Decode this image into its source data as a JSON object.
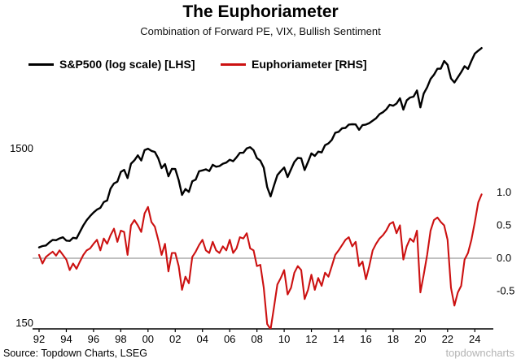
{
  "title": "The Euphoriameter",
  "subtitle": "Combination of Forward PE, VIX, Bullish Sentiment",
  "legend": [
    {
      "label": "S&P500 (log scale) [LHS]",
      "color": "#000000"
    },
    {
      "label": "Euphoriameter [RHS]",
      "color": "#cc1111"
    }
  ],
  "source": "Source: Topdown Charts, LSEG",
  "watermark": "topdowncharts",
  "colors": {
    "sp500_line": "#000000",
    "euphoriameter_line": "#cc1111",
    "zero_line": "#9b9b9b",
    "axis": "#000000",
    "watermark": "#b3b3b3"
  },
  "chart_data": {
    "type": "line",
    "title": "The Euphoriameter",
    "subtitle": "Combination of Forward PE, VIX, Bullish Sentiment",
    "xlabel": "",
    "left_ylabel": "S&P500 (log scale)",
    "right_ylabel": "Euphoriameter",
    "legend_position": "top-left",
    "grid": false,
    "x": [
      1992,
      1992.25,
      1992.5,
      1992.75,
      1993,
      1993.25,
      1993.5,
      1993.75,
      1994,
      1994.25,
      1994.5,
      1994.75,
      1995,
      1995.25,
      1995.5,
      1995.75,
      1996,
      1996.25,
      1996.5,
      1996.75,
      1997,
      1997.25,
      1997.5,
      1997.75,
      1998,
      1998.25,
      1998.5,
      1998.75,
      1999,
      1999.25,
      1999.5,
      1999.75,
      2000,
      2000.25,
      2000.5,
      2000.75,
      2001,
      2001.25,
      2001.5,
      2001.75,
      2002,
      2002.25,
      2002.5,
      2002.75,
      2003,
      2003.25,
      2003.5,
      2003.75,
      2004,
      2004.25,
      2004.5,
      2004.75,
      2005,
      2005.25,
      2005.5,
      2005.75,
      2006,
      2006.25,
      2006.5,
      2006.75,
      2007,
      2007.25,
      2007.5,
      2007.75,
      2008,
      2008.25,
      2008.5,
      2008.75,
      2009,
      2009.25,
      2009.5,
      2009.75,
      2010,
      2010.25,
      2010.5,
      2010.75,
      2011,
      2011.25,
      2011.5,
      2011.75,
      2012,
      2012.25,
      2012.5,
      2012.75,
      2013,
      2013.25,
      2013.5,
      2013.75,
      2014,
      2014.25,
      2014.5,
      2014.75,
      2015,
      2015.25,
      2015.5,
      2015.75,
      2016,
      2016.25,
      2016.5,
      2016.75,
      2017,
      2017.25,
      2017.5,
      2017.75,
      2018,
      2018.25,
      2018.5,
      2018.75,
      2019,
      2019.25,
      2019.5,
      2019.75,
      2020,
      2020.25,
      2020.5,
      2020.75,
      2021,
      2021.25,
      2021.5,
      2021.75,
      2022,
      2022.25,
      2022.5,
      2022.75,
      2023,
      2023.25,
      2023.5,
      2023.75,
      2024,
      2024.25,
      2024.5
    ],
    "series": [
      {
        "name": "S&P500 (log scale) [LHS]",
        "axis": "left",
        "color": "#000000",
        "values": [
          408,
          415,
          418,
          435,
          450,
          448,
          459,
          466,
          446,
          444,
          463,
          459,
          501,
          545,
          584,
          616,
          646,
          671,
          687,
          741,
          757,
          885,
          947,
          970,
          1102,
          1134,
          1017,
          1229,
          1286,
          1373,
          1283,
          1469,
          1499,
          1455,
          1436,
          1320,
          1160,
          1224,
          1041,
          1148,
          1147,
          990,
          815,
          880,
          848,
          975,
          996,
          1112,
          1126,
          1141,
          1115,
          1212,
          1181,
          1191,
          1229,
          1248,
          1295,
          1270,
          1336,
          1418,
          1421,
          1503,
          1527,
          1468,
          1323,
          1280,
          1166,
          903,
          798,
          919,
          1057,
          1115,
          1169,
          1031,
          1141,
          1258,
          1326,
          1321,
          1131,
          1258,
          1408,
          1362,
          1441,
          1426,
          1569,
          1606,
          1682,
          1848,
          1872,
          1960,
          1972,
          2059,
          2068,
          2063,
          1920,
          2044,
          2060,
          2099,
          2168,
          2239,
          2363,
          2423,
          2519,
          2674,
          2641,
          2718,
          2914,
          2507,
          2834,
          2942,
          2977,
          3231,
          2585,
          3100,
          3363,
          3756,
          3973,
          4298,
          4308,
          4766,
          4530,
          3785,
          3586,
          3840,
          4109,
          4450,
          4288,
          4770,
          5254,
          5460,
          5650
        ]
      },
      {
        "name": "Euphoriameter [RHS]",
        "axis": "right",
        "color": "#cc1111",
        "values": [
          0.05,
          -0.08,
          0.02,
          0.06,
          0.1,
          0.04,
          0.12,
          0.05,
          -0.02,
          -0.18,
          -0.08,
          -0.16,
          -0.05,
          0.05,
          0.12,
          0.15,
          0.22,
          0.28,
          0.12,
          0.3,
          0.22,
          0.35,
          0.45,
          0.25,
          0.42,
          0.4,
          0.05,
          0.5,
          0.58,
          0.5,
          0.4,
          0.68,
          0.78,
          0.55,
          0.48,
          0.28,
          0.05,
          0.22,
          -0.2,
          0.08,
          0.08,
          -0.12,
          -0.48,
          -0.28,
          -0.38,
          0.02,
          0.1,
          0.2,
          0.28,
          0.12,
          0.08,
          0.25,
          0.12,
          0.08,
          0.18,
          0.12,
          0.28,
          0.08,
          0.15,
          0.32,
          0.3,
          0.38,
          0.15,
          0.12,
          -0.12,
          -0.1,
          -0.45,
          -1.0,
          -1.08,
          -0.75,
          -0.4,
          -0.3,
          -0.18,
          -0.55,
          -0.45,
          -0.22,
          -0.12,
          -0.18,
          -0.62,
          -0.48,
          -0.25,
          -0.48,
          -0.3,
          -0.42,
          -0.22,
          -0.28,
          -0.12,
          0.05,
          0.12,
          0.2,
          0.28,
          0.32,
          0.18,
          0.25,
          -0.12,
          -0.05,
          -0.32,
          -0.12,
          0.12,
          0.22,
          0.3,
          0.35,
          0.42,
          0.52,
          0.55,
          0.38,
          0.5,
          -0.02,
          0.18,
          0.3,
          0.25,
          0.42,
          -0.52,
          -0.25,
          0.05,
          0.42,
          0.58,
          0.62,
          0.55,
          0.5,
          0.28,
          -0.45,
          -0.72,
          -0.52,
          -0.42,
          -0.02,
          0.08,
          0.28,
          0.55,
          0.85,
          0.97
        ]
      }
    ],
    "x_ticks": {
      "values": [
        1992,
        1994,
        1996,
        1998,
        2000,
        2002,
        2004,
        2006,
        2008,
        2010,
        2012,
        2014,
        2016,
        2018,
        2020,
        2022,
        2024
      ],
      "labels": [
        "92",
        "94",
        "96",
        "98",
        "00",
        "02",
        "04",
        "06",
        "08",
        "10",
        "12",
        "14",
        "16",
        "18",
        "20",
        "22",
        "24"
      ]
    },
    "left_axis": {
      "scale": "log",
      "ticks": [
        1500,
        150
      ],
      "labels": [
        "1500",
        "150"
      ]
    },
    "right_axis": {
      "scale": "linear",
      "ticks": [
        1.0,
        0.5,
        0.0,
        -0.5
      ],
      "labels": [
        "1.0",
        "0.5",
        "0.0",
        "-0.5"
      ],
      "ylim": [
        -1.1,
        1.1
      ]
    },
    "zero_line": true,
    "x_range": [
      1992,
      2025
    ]
  }
}
